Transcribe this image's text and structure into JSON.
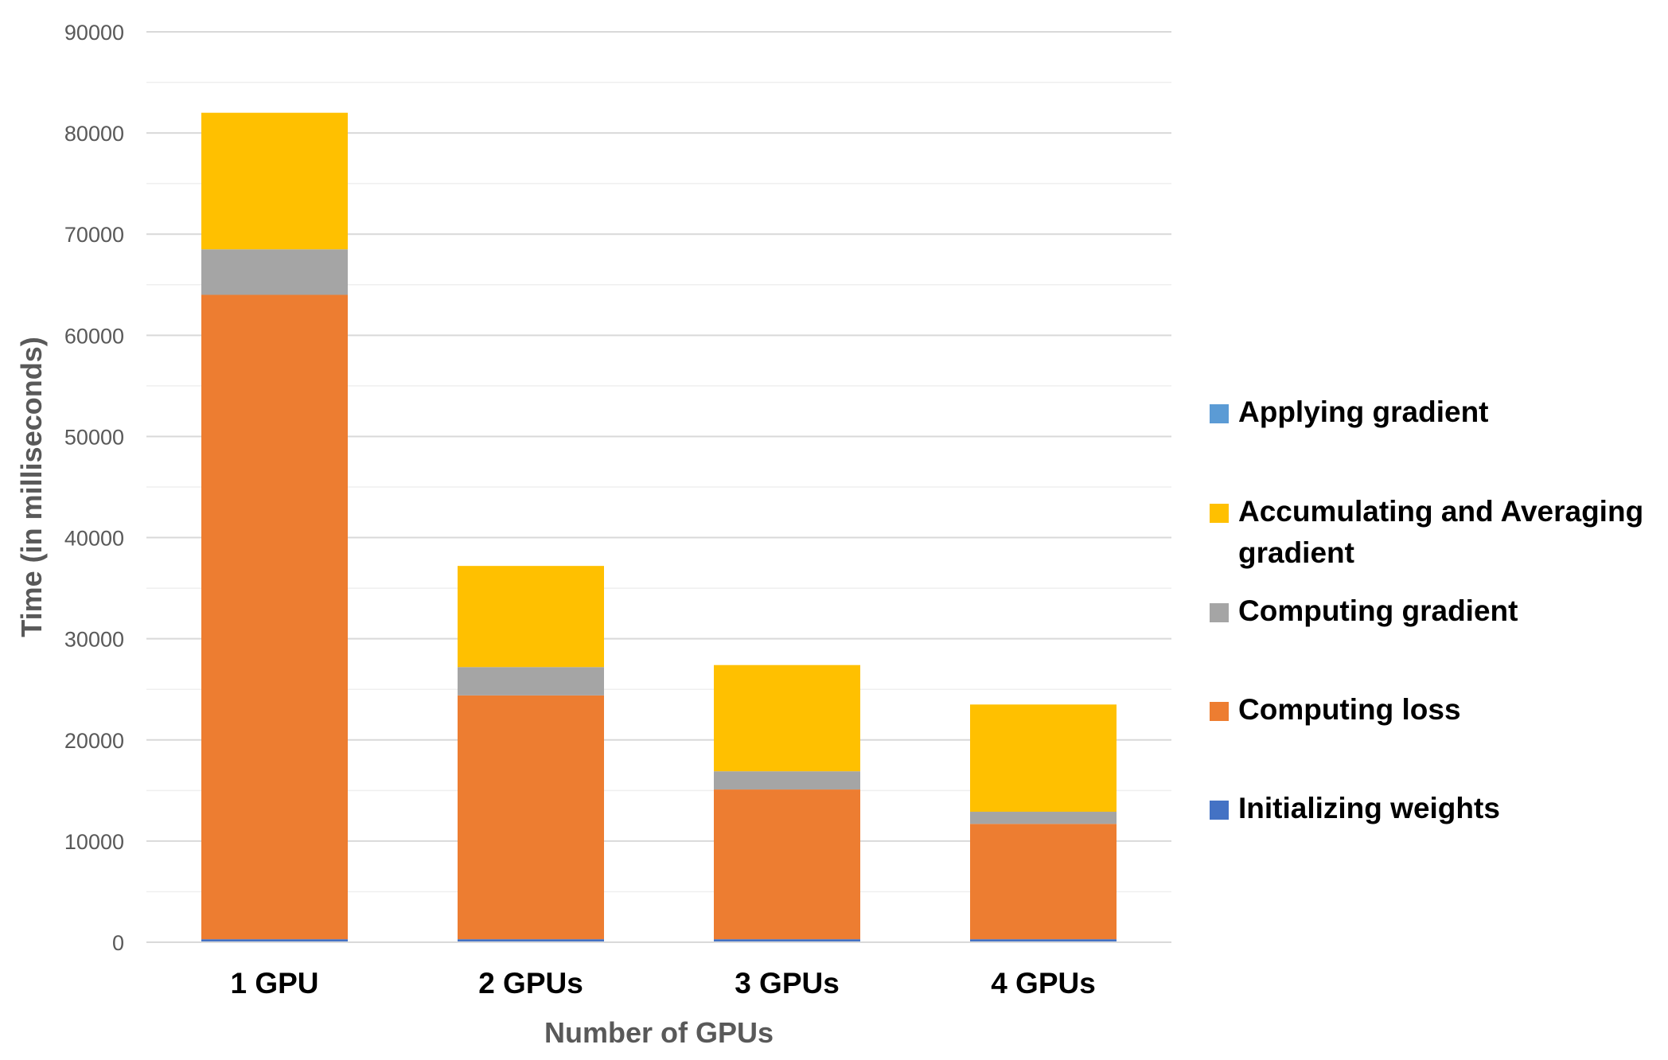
{
  "chart_data": {
    "type": "bar",
    "stacked": true,
    "categories": [
      "1 GPU",
      "2 GPUs",
      "3 GPUs",
      "4 GPUs"
    ],
    "series": [
      {
        "name": "Initializing weights",
        "color": "#4472C4",
        "values": [
          300,
          300,
          300,
          300
        ]
      },
      {
        "name": "Computing loss",
        "color": "#ED7D31",
        "values": [
          63700,
          24100,
          14800,
          11400
        ]
      },
      {
        "name": "Computing gradient",
        "color": "#A5A5A5",
        "values": [
          4500,
          2800,
          1800,
          1200
        ]
      },
      {
        "name": "Accumulating and Averaging gradient",
        "color": "#FFC000",
        "values": [
          13500,
          10000,
          10500,
          10600
        ]
      },
      {
        "name": "Applying gradient",
        "color": "#5B9BD5",
        "values": [
          0,
          0,
          0,
          0
        ]
      }
    ],
    "legend_order": [
      {
        "label": "Applying gradient",
        "color": "#5B9BD5"
      },
      {
        "label": "Accumulating and Averaging gradient",
        "color": "#FFC000"
      },
      {
        "label": "Computing gradient",
        "color": "#A5A5A5"
      },
      {
        "label": "Computing loss",
        "color": "#ED7D31"
      },
      {
        "label": "Initializing weights",
        "color": "#4472C4"
      }
    ],
    "title": "",
    "xlabel": "Number of GPUs",
    "ylabel": "Time (in milliseconds)",
    "ylim": [
      0,
      90000
    ],
    "yticks": [
      "0",
      "10000",
      "20000",
      "30000",
      "40000",
      "50000",
      "60000",
      "70000",
      "80000",
      "90000"
    ],
    "grid": true,
    "legend_position": "right"
  }
}
